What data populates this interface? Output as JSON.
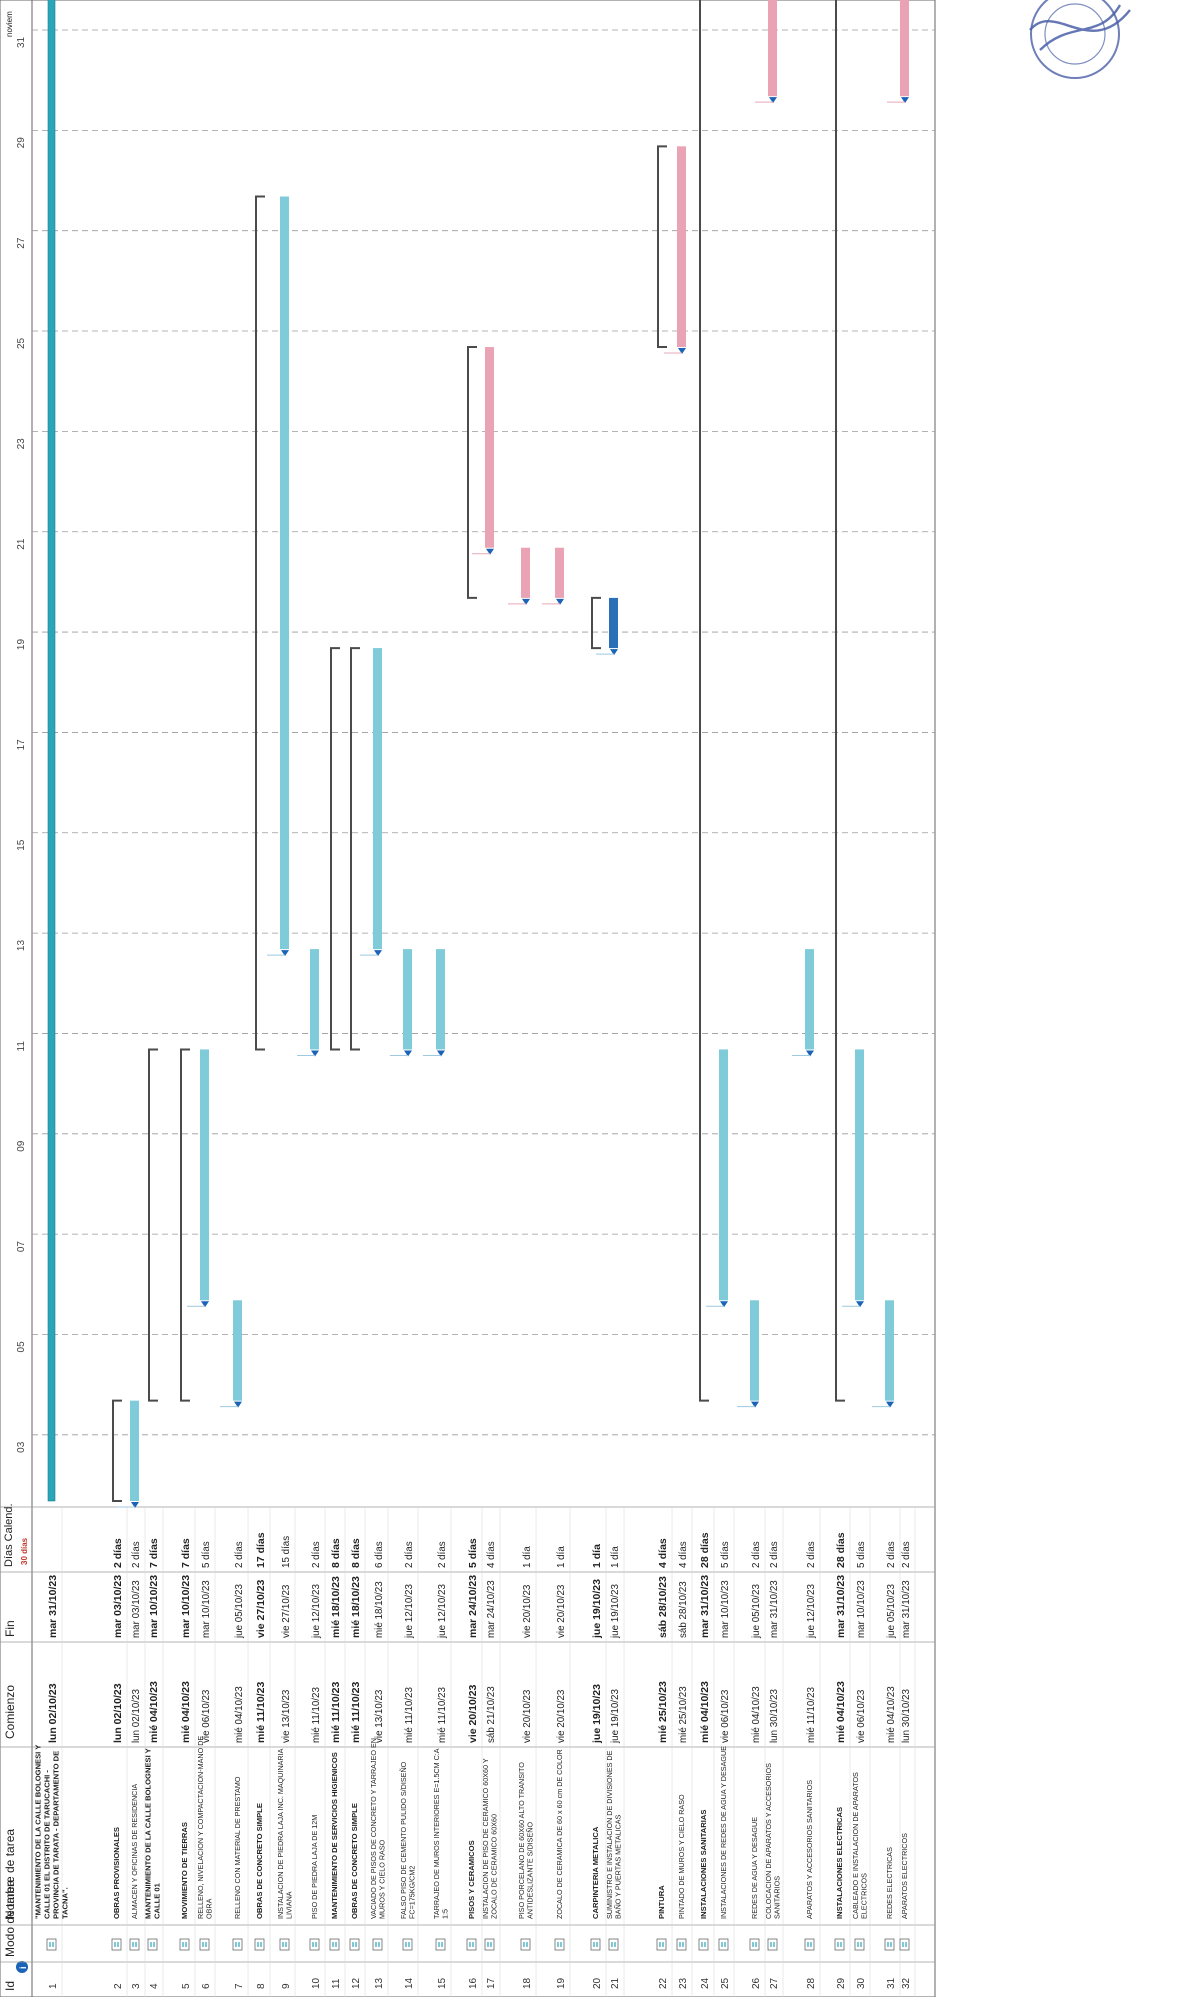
{
  "headers": {
    "id": "Id",
    "info": "i",
    "mode": "Modo de tarea",
    "name": "Nombre de tarea",
    "start": "Comienzo",
    "end": "Fin",
    "days": "Días Calend.",
    "days_sub": "30 días",
    "month_label": "noviem"
  },
  "timeline": {
    "ticks": [
      "03",
      "05",
      "07",
      "09",
      "11",
      "13",
      "15",
      "17",
      "19",
      "21",
      "23",
      "25",
      "27",
      "29",
      "31"
    ]
  },
  "colors": {
    "summary_bracket": "#4b4b4b",
    "task_bar": "#7fcbd9",
    "critical_bar": "#e9a3b4",
    "link_blue": "#9ec9e0",
    "link_red": "#e6a9b6",
    "arrow": "#1b63b6",
    "project_bar": "#2aa6b8",
    "stamp": "#4a5fa8"
  },
  "tasks": [
    {
      "id": "1",
      "name": "\"MANTENIMIENTO DE LA CALLE BOLOGNESI Y CALLE 01 EL DISTRITO DE TARUCACHI - PROVINCIA DE TARATA - DEPARTAMENTO DE TACNA\".",
      "start": "lun 02/10/23",
      "end": "mar 31/10/23",
      "days": "",
      "s": 2,
      "f": 31,
      "kind": "project",
      "bold": true
    },
    {
      "id": "2",
      "name": "OBRAS PROVISIONALES",
      "start": "lun 02/10/23",
      "end": "mar 03/10/23",
      "days": "2 días",
      "s": 2,
      "f": 3,
      "kind": "summary",
      "bold": true
    },
    {
      "id": "3",
      "name": "ALMACEN Y OFICINAS DE RESIDENCIA",
      "start": "lun 02/10/23",
      "end": "mar 03/10/23",
      "days": "2 días",
      "s": 2,
      "f": 3,
      "kind": "task",
      "bold": false
    },
    {
      "id": "4",
      "name": "MANTENIMIENTO DE LA CALLE BOLOGNESI Y CALLE 01",
      "start": "mié 04/10/23",
      "end": "mar 10/10/23",
      "days": "7 días",
      "s": 4,
      "f": 10,
      "kind": "summary",
      "bold": true
    },
    {
      "id": "5",
      "name": "MOVIMIENTO DE TIERRAS",
      "start": "mié 04/10/23",
      "end": "mar 10/10/23",
      "days": "7 días",
      "s": 4,
      "f": 10,
      "kind": "summary",
      "bold": true
    },
    {
      "id": "6",
      "name": "RELLENO, NIVELACION Y COMPACTACION-MANO DE OBRA",
      "start": "vie 06/10/23",
      "end": "mar 10/10/23",
      "days": "5 días",
      "s": 6,
      "f": 10,
      "kind": "task",
      "bold": false
    },
    {
      "id": "7",
      "name": "RELLENO CON MATERIAL DE PRESTAMO",
      "start": "mié 04/10/23",
      "end": "jue 05/10/23",
      "days": "2 días",
      "s": 4,
      "f": 5,
      "kind": "task",
      "bold": false
    },
    {
      "id": "8",
      "name": "OBRAS DE CONCRETO SIMPLE",
      "start": "mié 11/10/23",
      "end": "vie 27/10/23",
      "days": "17 días",
      "s": 11,
      "f": 27,
      "kind": "summary",
      "bold": true
    },
    {
      "id": "9",
      "name": "INSTALACION DE PIEDRA LAJA INC. MAQUINARIA LIVIANA",
      "start": "vie 13/10/23",
      "end": "vie 27/10/23",
      "days": "15 días",
      "s": 13,
      "f": 27,
      "kind": "task",
      "bold": false
    },
    {
      "id": "10",
      "name": "PISO DE PIEDRA LAJA DE 12M",
      "start": "mié 11/10/23",
      "end": "jue 12/10/23",
      "days": "2 días",
      "s": 11,
      "f": 12,
      "kind": "task",
      "bold": false
    },
    {
      "id": "11",
      "name": "MANTENIMIENTO DE SERVICIOS HIGIENICOS",
      "start": "mié 11/10/23",
      "end": "mié 18/10/23",
      "days": "8 días",
      "s": 11,
      "f": 18,
      "kind": "summary",
      "bold": true
    },
    {
      "id": "12",
      "name": "OBRAS DE CONCRETO SIMPLE",
      "start": "mié 11/10/23",
      "end": "mié 18/10/23",
      "days": "8 días",
      "s": 11,
      "f": 18,
      "kind": "summary",
      "bold": true
    },
    {
      "id": "13",
      "name": "VACIADO DE PISOS DE CONCRETO Y TARRAJEO EN MUROS Y CIELO RASO",
      "start": "vie 13/10/23",
      "end": "mié 18/10/23",
      "days": "6 días",
      "s": 13,
      "f": 18,
      "kind": "task",
      "bold": false
    },
    {
      "id": "14",
      "name": "FALSO PISO DE CEMENTO PULIDO S/DISEÑO FC=175KG/CM2",
      "start": "mié 11/10/23",
      "end": "jue 12/10/23",
      "days": "2 días",
      "s": 11,
      "f": 12,
      "kind": "task",
      "bold": false
    },
    {
      "id": "15",
      "name": "TARRAJEO DE MUROS INTERIORES E=1.5CM C:A 1:5",
      "start": "mié 11/10/23",
      "end": "jue 12/10/23",
      "days": "2 días",
      "s": 11,
      "f": 12,
      "kind": "task",
      "bold": false
    },
    {
      "id": "16",
      "name": "PISOS Y CERAMICOS",
      "start": "vie 20/10/23",
      "end": "mar 24/10/23",
      "days": "5 días",
      "s": 20,
      "f": 24,
      "kind": "summary",
      "bold": true
    },
    {
      "id": "17",
      "name": "INSTALACION DE PISO DE CERAMICO 60X60 Y ZOCALO DE CERAMICO 60X60",
      "start": "sáb 21/10/23",
      "end": "mar 24/10/23",
      "days": "4 días",
      "s": 21,
      "f": 24,
      "kind": "crit",
      "bold": false
    },
    {
      "id": "18",
      "name": "PISO PORCELANO DE 60X60 ALTO TRANSITO ANTIDESLIZANTE S/DISEÑO",
      "start": "vie 20/10/23",
      "end": "vie 20/10/23",
      "days": "1 día",
      "s": 20,
      "f": 20,
      "kind": "crit",
      "bold": false
    },
    {
      "id": "19",
      "name": "ZOCALO DE CERAMICA DE 60 x 60 cm DE COLOR",
      "start": "vie 20/10/23",
      "end": "vie 20/10/23",
      "days": "1 día",
      "s": 20,
      "f": 20,
      "kind": "crit",
      "bold": false
    },
    {
      "id": "20",
      "name": "CARPINTERIA METALICA",
      "start": "jue 19/10/23",
      "end": "jue 19/10/23",
      "days": "1 día",
      "s": 19,
      "f": 19,
      "kind": "summary",
      "bold": true
    },
    {
      "id": "21",
      "name": "SUMINISTRO E INSTALACION DE DIVISIONES DE BAÑO Y PUERTAS METALICAS",
      "start": "jue 19/10/23",
      "end": "jue 19/10/23",
      "days": "1 día",
      "s": 19,
      "f": 19,
      "kind": "dark",
      "bold": false
    },
    {
      "id": "22",
      "name": "PINTURA",
      "start": "mié 25/10/23",
      "end": "sáb 28/10/23",
      "days": "4 días",
      "s": 25,
      "f": 28,
      "kind": "summary",
      "bold": true
    },
    {
      "id": "23",
      "name": "PINTADO DE MUROS Y CIELO RASO",
      "start": "mié 25/10/23",
      "end": "sáb 28/10/23",
      "days": "4 días",
      "s": 25,
      "f": 28,
      "kind": "crit",
      "bold": false
    },
    {
      "id": "24",
      "name": "INSTALACIONES SANITARIAS",
      "start": "mié 04/10/23",
      "end": "mar 31/10/23",
      "days": "28 días",
      "s": 4,
      "f": 31,
      "kind": "summary",
      "bold": true
    },
    {
      "id": "25",
      "name": "INSTALACIONES DE REDES DE AGUA Y DESAGUE",
      "start": "vie 06/10/23",
      "end": "mar 10/10/23",
      "days": "5 días",
      "s": 6,
      "f": 10,
      "kind": "task",
      "bold": false
    },
    {
      "id": "26",
      "name": "REDES DE AGUA Y DESAGUE",
      "start": "mié 04/10/23",
      "end": "jue 05/10/23",
      "days": "2 días",
      "s": 4,
      "f": 5,
      "kind": "task",
      "bold": false
    },
    {
      "id": "27",
      "name": "COLOCACION DE APARATOS Y ACCESORIOS SANITARIOS",
      "start": "lun 30/10/23",
      "end": "mar 31/10/23",
      "days": "2 días",
      "s": 30,
      "f": 31,
      "kind": "crit",
      "bold": false
    },
    {
      "id": "28",
      "name": "APARATOS Y ACCESORIOS SANITARIOS",
      "start": "mié 11/10/23",
      "end": "jue 12/10/23",
      "days": "2 días",
      "s": 11,
      "f": 12,
      "kind": "task",
      "bold": false
    },
    {
      "id": "29",
      "name": "INSTALACIONES ELECTRICAS",
      "start": "mié 04/10/23",
      "end": "mar 31/10/23",
      "days": "28 días",
      "s": 4,
      "f": 31,
      "kind": "summary",
      "bold": true
    },
    {
      "id": "30",
      "name": "CABLEADO E INSTALACION DE APARATOS ELECTRICOS",
      "start": "vie 06/10/23",
      "end": "mar 10/10/23",
      "days": "5 días",
      "s": 6,
      "f": 10,
      "kind": "task",
      "bold": false
    },
    {
      "id": "31",
      "name": "REDES ELECTRICAS",
      "start": "mié 04/10/23",
      "end": "jue 05/10/23",
      "days": "2 días",
      "s": 4,
      "f": 5,
      "kind": "task",
      "bold": false
    },
    {
      "id": "32",
      "name": "APARATOS ELECTRICOS",
      "start": "lun 30/10/23",
      "end": "mar 31/10/23",
      "days": "2 días",
      "s": 30,
      "f": 31,
      "kind": "crit",
      "bold": false
    }
  ]
}
